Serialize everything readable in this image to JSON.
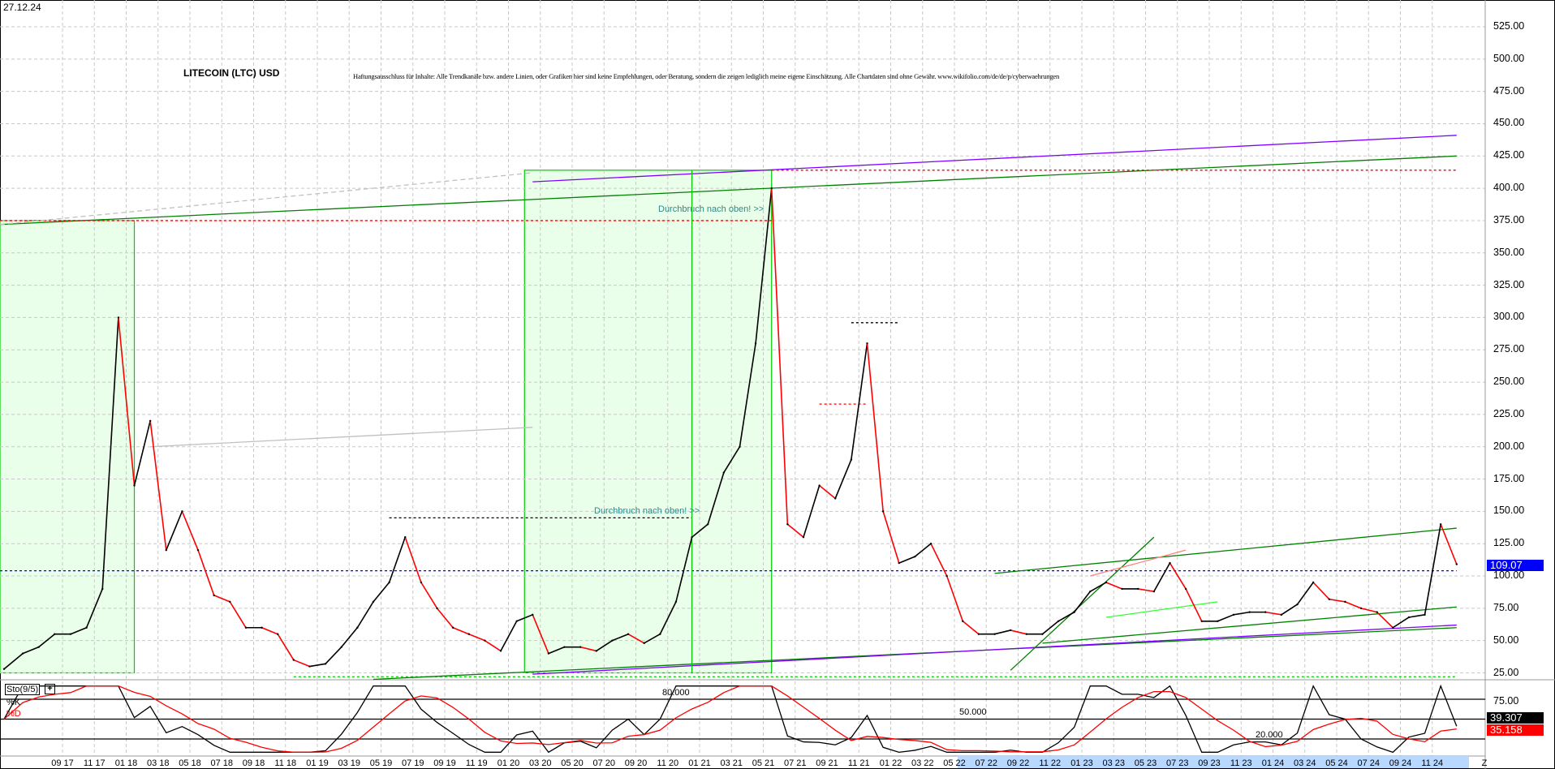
{
  "header": {
    "date": "27.12.24",
    "title": "LITECOIN (LTC) USD",
    "disclaimer": "Haftungsausschluss für Inhalte: Alle Trendkanäle bzw. andere Linien, oder Grafiken hier sind keine Empfehlungen, oder Beratung, sondern die zeigen lediglich meine eigene Einschätzung. Alle Chartdaten sind ohne Gewähr. www.wikifolio.com/de/de/p/cyberwaehrungen"
  },
  "chart_data": [
    {
      "type": "line",
      "title": "LITECOIN (LTC) USD",
      "ylim": [
        25,
        525
      ],
      "y_ticks": [
        "25.00",
        "50.00",
        "75.00",
        "100.00",
        "125.00",
        "150.00",
        "175.00",
        "200.00",
        "225.00",
        "250.00",
        "275.00",
        "300.00",
        "325.00",
        "350.00",
        "375.00",
        "400.00",
        "425.00",
        "450.00",
        "475.00",
        "500.00",
        "525.00"
      ],
      "x_ticks": [
        "09 17",
        "11 17",
        "01 18",
        "03 18",
        "05 18",
        "07 18",
        "09 18",
        "11 18",
        "01 19",
        "03 19",
        "05 19",
        "07 19",
        "09 19",
        "11 19",
        "01 20",
        "03 20",
        "05 20",
        "07 20",
        "09 20",
        "11 20",
        "01 21",
        "03 21",
        "05 21",
        "07 21",
        "09 21",
        "11 21",
        "01 22",
        "03 22",
        "05 22",
        "07 22",
        "09 22",
        "11 22",
        "01 23",
        "03 23",
        "05 23",
        "07 23",
        "09 23",
        "11 23",
        "01 24",
        "03 24",
        "05 24",
        "07 24",
        "09 24",
        "11 24"
      ],
      "x_end_label": "Z",
      "grid": true,
      "last_price": "109.07",
      "colors": {
        "up": "#000000",
        "down": "#ff0000",
        "last_price_box": "#0000ff"
      },
      "x": [
        "2017-05",
        "2017-06",
        "2017-07",
        "2017-08",
        "2017-09",
        "2017-10",
        "2017-11",
        "2017-12",
        "2018-01",
        "2018-02",
        "2018-03",
        "2018-04",
        "2018-05",
        "2018-06",
        "2018-07",
        "2018-08",
        "2018-09",
        "2018-10",
        "2018-11",
        "2018-12",
        "2019-01",
        "2019-02",
        "2019-03",
        "2019-04",
        "2019-05",
        "2019-06",
        "2019-07",
        "2019-08",
        "2019-09",
        "2019-10",
        "2019-11",
        "2019-12",
        "2020-01",
        "2020-02",
        "2020-03",
        "2020-04",
        "2020-05",
        "2020-06",
        "2020-07",
        "2020-08",
        "2020-09",
        "2020-10",
        "2020-11",
        "2020-12",
        "2021-01",
        "2021-02",
        "2021-03",
        "2021-04",
        "2021-05",
        "2021-06",
        "2021-07",
        "2021-08",
        "2021-09",
        "2021-10",
        "2021-11",
        "2021-12",
        "2022-01",
        "2022-02",
        "2022-03",
        "2022-04",
        "2022-05",
        "2022-06",
        "2022-07",
        "2022-08",
        "2022-09",
        "2022-10",
        "2022-11",
        "2022-12",
        "2023-01",
        "2023-02",
        "2023-03",
        "2023-04",
        "2023-05",
        "2023-06",
        "2023-07",
        "2023-08",
        "2023-09",
        "2023-10",
        "2023-11",
        "2023-12",
        "2024-01",
        "2024-02",
        "2024-03",
        "2024-04",
        "2024-05",
        "2024-06",
        "2024-07",
        "2024-08",
        "2024-09",
        "2024-10",
        "2024-11",
        "2024-12"
      ],
      "values": [
        28,
        40,
        45,
        55,
        55,
        60,
        90,
        300,
        170,
        220,
        120,
        150,
        120,
        85,
        80,
        60,
        60,
        55,
        35,
        30,
        32,
        45,
        60,
        80,
        95,
        130,
        95,
        75,
        60,
        55,
        50,
        42,
        65,
        70,
        40,
        45,
        45,
        42,
        50,
        55,
        48,
        55,
        80,
        130,
        140,
        180,
        200,
        280,
        400,
        140,
        130,
        170,
        160,
        190,
        280,
        150,
        110,
        115,
        125,
        100,
        65,
        55,
        55,
        58,
        55,
        55,
        65,
        72,
        88,
        95,
        90,
        90,
        88,
        110,
        90,
        65,
        65,
        70,
        72,
        72,
        70,
        78,
        95,
        82,
        80,
        75,
        72,
        60,
        68,
        70,
        140,
        109.07
      ],
      "annotations": {
        "texts": [
          {
            "text": "Durchbruch nach oben! >>",
            "at": [
              "2021-03",
              378
            ]
          },
          {
            "text": "Durchbruch nach oben! >>",
            "at": [
              "2020-11",
              143
            ]
          }
        ],
        "lines": [
          {
            "from": [
              "2017-05",
              372
            ],
            "to": [
              "2024-12",
              425
            ],
            "color": "#008000",
            "style": "solid"
          },
          {
            "from": [
              "2020-02",
              405
            ],
            "to": [
              "2024-12",
              441
            ],
            "color": "#8000ff",
            "style": "solid"
          },
          {
            "from": [
              "2017-05",
              375
            ],
            "to": [
              "2021-05",
              375
            ],
            "color": "#ff0000",
            "style": "dotted"
          },
          {
            "from": [
              "2021-05",
              414
            ],
            "to": [
              "2024-12",
              414
            ],
            "color": "#ff0000",
            "style": "dotted"
          },
          {
            "from": [
              "2017-05",
              104
            ],
            "to": [
              "2024-12",
              104
            ],
            "color": "#0000ff",
            "style": "dotted"
          },
          {
            "from": [
              "2018-11",
              22
            ],
            "to": [
              "2024-12",
              22
            ],
            "color": "#00cc00",
            "style": "dotted"
          },
          {
            "from": [
              "2019-05",
              145
            ],
            "to": [
              "2020-12",
              145
            ],
            "color": "#000000",
            "style": "dotted"
          },
          {
            "from": [
              "2021-10",
              296
            ],
            "to": [
              "2022-01",
              296
            ],
            "color": "#000000",
            "style": "dotted"
          },
          {
            "from": [
              "2021-08",
              233
            ],
            "to": [
              "2021-11",
              233
            ],
            "color": "#ff0000",
            "style": "dotted"
          },
          {
            "from": [
              "2019-04",
              20
            ],
            "to": [
              "2024-12",
              60
            ],
            "color": "#008000",
            "style": "solid"
          },
          {
            "from": [
              "2020-02",
              24
            ],
            "to": [
              "2024-12",
              62
            ],
            "color": "#8000ff",
            "style": "solid"
          },
          {
            "from": [
              "2022-07",
              102
            ],
            "to": [
              "2024-12",
              137
            ],
            "color": "#008000",
            "style": "solid"
          },
          {
            "from": [
              "2022-10",
              48
            ],
            "to": [
              "2024-12",
              76
            ],
            "color": "#008000",
            "style": "solid"
          },
          {
            "from": [
              "2022-08",
              27
            ],
            "to": [
              "2023-05",
              130
            ],
            "color": "#008000",
            "style": "solid"
          },
          {
            "from": [
              "2023-01",
              100
            ],
            "to": [
              "2023-07",
              120
            ],
            "color": "#ff8080",
            "style": "solid"
          },
          {
            "from": [
              "2023-02",
              68
            ],
            "to": [
              "2023-09",
              80
            ],
            "color": "#33ff33",
            "style": "solid"
          },
          {
            "from": [
              "2017-05",
              372
            ],
            "to": [
              "2020-02",
              412
            ],
            "color": "#c0c0c0",
            "style": "dashed"
          },
          {
            "from": [
              "2018-02",
              200
            ],
            "to": [
              "2020-02",
              215
            ],
            "color": "#c0c0c0",
            "style": "solid"
          }
        ],
        "boxes": [
          {
            "from": [
              "2017-05",
              375
            ],
            "to": [
              "2018-01",
              25
            ],
            "color": "#00cc00"
          },
          {
            "from": [
              "2020-02",
              414
            ],
            "to": [
              "2021-05",
              25
            ],
            "color": "#00cc00"
          }
        ],
        "vlines": [
          {
            "at": "2020-12",
            "from": 414,
            "to": 25,
            "color": "#00cc00"
          }
        ]
      }
    },
    {
      "type": "line",
      "title": "Sto(9/5)",
      "series": [
        {
          "name": "%K",
          "color": "#000000"
        },
        {
          "name": "%D",
          "color": "#ff0000"
        }
      ],
      "levels": [
        "80.000",
        "50.000",
        "20.000"
      ],
      "y_tick": "75.00",
      "last_k": "39.307",
      "last_d": "35.158",
      "ylim": [
        0,
        100
      ]
    }
  ]
}
